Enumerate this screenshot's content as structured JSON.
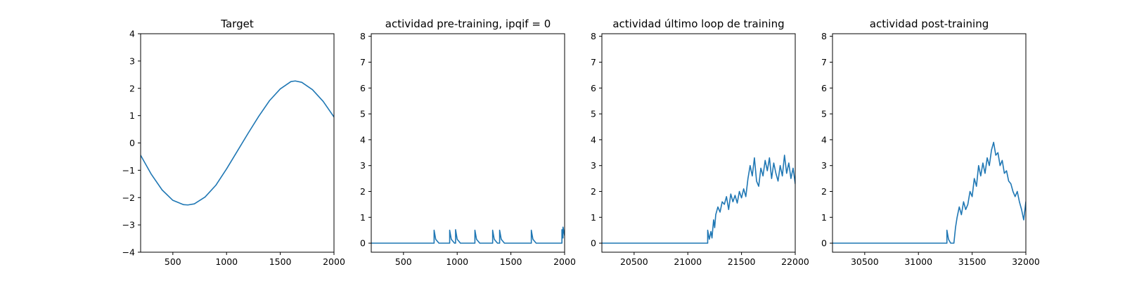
{
  "chart_data": [
    {
      "type": "line",
      "title": "Target",
      "xlim": [
        200,
        2000
      ],
      "ylim": [
        -4,
        4
      ],
      "xticks": [
        500,
        1000,
        1500,
        2000
      ],
      "yticks": [
        -4,
        -3,
        -2,
        -1,
        0,
        1,
        2,
        3,
        4
      ],
      "series": [
        {
          "color": "#1f77b4",
          "x": [
            200,
            300,
            400,
            500,
            600,
            640,
            700,
            800,
            900,
            1000,
            1100,
            1200,
            1300,
            1400,
            1500,
            1600,
            1640,
            1700,
            1800,
            1900,
            2000
          ],
          "y": [
            -0.45,
            -1.15,
            -1.72,
            -2.1,
            -2.26,
            -2.27,
            -2.23,
            -1.98,
            -1.55,
            -0.95,
            -0.3,
            0.35,
            0.98,
            1.55,
            1.98,
            2.25,
            2.27,
            2.22,
            1.95,
            1.52,
            0.95
          ]
        }
      ]
    },
    {
      "type": "line",
      "title": "actividad pre-training, ipqif = 0",
      "xlim": [
        200,
        2000
      ],
      "ylim": [
        -0.35,
        8.1
      ],
      "xticks": [
        500,
        1000,
        1500,
        2000
      ],
      "yticks": [
        0,
        1,
        2,
        3,
        4,
        5,
        6,
        7,
        8
      ],
      "series": [
        {
          "color": "#1f77b4",
          "x": [
            200,
            785,
            785,
            800,
            830,
            930,
            930,
            945,
            975,
            985,
            985,
            1000,
            1030,
            1165,
            1165,
            1180,
            1210,
            1330,
            1330,
            1345,
            1375,
            1395,
            1395,
            1410,
            1440,
            1690,
            1690,
            1705,
            1735,
            1975,
            1975,
            1985,
            1985,
            2000
          ],
          "y": [
            0,
            0,
            0.5,
            0.15,
            0,
            0,
            0.5,
            0.15,
            0,
            0,
            0.52,
            0.15,
            0,
            0,
            0.5,
            0.15,
            0,
            0,
            0.5,
            0.15,
            0,
            0,
            0.5,
            0.15,
            0,
            0,
            0.5,
            0.15,
            0,
            0,
            0.52,
            0.2,
            0.62,
            0.3
          ]
        }
      ]
    },
    {
      "type": "line",
      "title": "actividad último loop de training",
      "xlim": [
        20200,
        22000
      ],
      "ylim": [
        -0.35,
        8.1
      ],
      "xticks": [
        20500,
        21000,
        21500,
        22000
      ],
      "yticks": [
        0,
        1,
        2,
        3,
        4,
        5,
        6,
        7,
        8
      ],
      "series": [
        {
          "color": "#1f77b4",
          "x": [
            20200,
            21185,
            21185,
            21200,
            21215,
            21225,
            21240,
            21250,
            21260,
            21280,
            21300,
            21320,
            21340,
            21360,
            21380,
            21400,
            21420,
            21440,
            21460,
            21480,
            21500,
            21520,
            21540,
            21560,
            21580,
            21600,
            21620,
            21640,
            21660,
            21680,
            21700,
            21720,
            21740,
            21760,
            21780,
            21800,
            21820,
            21840,
            21860,
            21880,
            21900,
            21920,
            21940,
            21960,
            21980,
            22000
          ],
          "y": [
            0,
            0,
            0.5,
            0.15,
            0.45,
            0.2,
            0.9,
            0.6,
            1.1,
            1.4,
            1.2,
            1.6,
            1.5,
            1.8,
            1.3,
            1.9,
            1.6,
            1.85,
            1.55,
            2.0,
            1.75,
            2.1,
            1.8,
            2.5,
            3.0,
            2.6,
            3.3,
            2.4,
            2.2,
            2.9,
            2.6,
            3.2,
            2.8,
            3.3,
            2.5,
            3.1,
            2.7,
            2.4,
            3.0,
            2.6,
            3.4,
            2.7,
            3.1,
            2.5,
            2.9,
            2.3
          ]
        }
      ]
    },
    {
      "type": "line",
      "title": "actividad post-training",
      "xlim": [
        30200,
        32000
      ],
      "ylim": [
        -0.35,
        8.1
      ],
      "xticks": [
        30500,
        31000,
        31500,
        32000
      ],
      "yticks": [
        0,
        1,
        2,
        3,
        4,
        5,
        6,
        7,
        8
      ],
      "series": [
        {
          "color": "#1f77b4",
          "x": [
            30200,
            31265,
            31265,
            31280,
            31300,
            31330,
            31345,
            31360,
            31380,
            31400,
            31420,
            31440,
            31460,
            31480,
            31500,
            31520,
            31540,
            31560,
            31580,
            31600,
            31620,
            31640,
            31660,
            31680,
            31700,
            31720,
            31740,
            31760,
            31780,
            31800,
            31820,
            31840,
            31860,
            31880,
            31900,
            31920,
            31940,
            31960,
            31980,
            32000
          ],
          "y": [
            0,
            0,
            0.5,
            0.15,
            0,
            0,
            0.6,
            1.0,
            1.4,
            1.1,
            1.6,
            1.3,
            1.5,
            2.0,
            1.8,
            2.5,
            2.2,
            3.0,
            2.6,
            3.1,
            2.7,
            3.3,
            3.0,
            3.6,
            3.9,
            3.4,
            3.5,
            3.0,
            3.2,
            2.7,
            2.8,
            2.4,
            2.3,
            2.0,
            1.8,
            2.0,
            1.6,
            1.3,
            0.9,
            1.6
          ]
        }
      ]
    }
  ]
}
